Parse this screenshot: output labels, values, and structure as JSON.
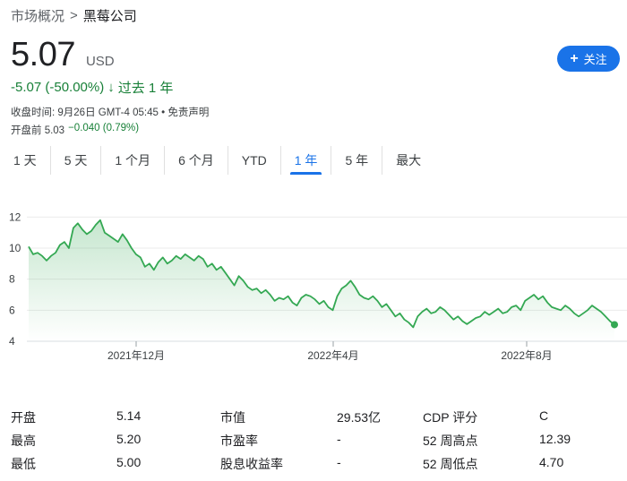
{
  "breadcrumb": {
    "root": "市场概况",
    "separator": ">",
    "current": "黑莓公司"
  },
  "quote": {
    "price": "5.07",
    "currency": "USD",
    "change": "-5.07 (-50.00%)",
    "direction_icon": "arrow-down-icon",
    "period": "过去 1 年",
    "close_time": "收盘时间: 9月26日 GMT-4 05:45",
    "disclaimer": "• 免责声明",
    "premarket_label": "开盘前 5.03",
    "premarket_change": "−0.040 (0.79%)"
  },
  "follow_button": {
    "label": "关注",
    "icon": "plus-icon"
  },
  "tabs": [
    {
      "label": "1 天",
      "active": false
    },
    {
      "label": "5 天",
      "active": false
    },
    {
      "label": "1 个月",
      "active": false
    },
    {
      "label": "6 个月",
      "active": false
    },
    {
      "label": "YTD",
      "active": false
    },
    {
      "label": "1 年",
      "active": true
    },
    {
      "label": "5 年",
      "active": false
    },
    {
      "label": "最大",
      "active": false
    }
  ],
  "chart_data": {
    "type": "area",
    "x_ticks": [
      "2021年12月",
      "2022年4月",
      "2022年8月"
    ],
    "y_ticks": [
      4,
      6,
      8,
      10,
      12
    ],
    "ylim": [
      4,
      13
    ],
    "grid": true,
    "line_color": "#34a853",
    "values": [
      10.1,
      9.6,
      9.7,
      9.5,
      9.2,
      9.5,
      9.7,
      10.2,
      10.4,
      10.0,
      11.3,
      11.6,
      11.2,
      10.9,
      11.1,
      11.5,
      11.8,
      11.0,
      10.8,
      10.6,
      10.4,
      10.9,
      10.5,
      10.0,
      9.6,
      9.4,
      8.8,
      9.0,
      8.6,
      9.1,
      9.4,
      9.0,
      9.2,
      9.5,
      9.3,
      9.6,
      9.4,
      9.2,
      9.5,
      9.3,
      8.8,
      9.0,
      8.6,
      8.8,
      8.4,
      8.0,
      7.6,
      8.2,
      7.9,
      7.5,
      7.3,
      7.4,
      7.1,
      7.3,
      7.0,
      6.6,
      6.8,
      6.7,
      6.9,
      6.5,
      6.3,
      6.8,
      7.0,
      6.9,
      6.7,
      6.4,
      6.6,
      6.2,
      6.0,
      6.9,
      7.4,
      7.6,
      7.9,
      7.5,
      7.0,
      6.8,
      6.7,
      6.9,
      6.6,
      6.2,
      6.4,
      6.0,
      5.6,
      5.8,
      5.4,
      5.2,
      4.9,
      5.6,
      5.9,
      6.1,
      5.8,
      5.9,
      6.2,
      6.0,
      5.7,
      5.4,
      5.6,
      5.3,
      5.1,
      5.3,
      5.5,
      5.6,
      5.9,
      5.7,
      5.9,
      6.1,
      5.8,
      5.9,
      6.2,
      6.3,
      6.0,
      6.6,
      6.8,
      7.0,
      6.7,
      6.9,
      6.5,
      6.2,
      6.1,
      6.0,
      6.3,
      6.1,
      5.8,
      5.6,
      5.8,
      6.0,
      6.3,
      6.1,
      5.9,
      5.6,
      5.3,
      5.07
    ]
  },
  "stats": [
    {
      "label": "开盘",
      "value": "5.14"
    },
    {
      "label": "市值",
      "value": "29.53亿"
    },
    {
      "label": "CDP 评分",
      "value": "C"
    },
    {
      "label": "最高",
      "value": "5.20"
    },
    {
      "label": "市盈率",
      "value": "-"
    },
    {
      "label": "52 周高点",
      "value": "12.39"
    },
    {
      "label": "最低",
      "value": "5.00"
    },
    {
      "label": "股息收益率",
      "value": "-"
    },
    {
      "label": "52 周低点",
      "value": "4.70"
    }
  ]
}
